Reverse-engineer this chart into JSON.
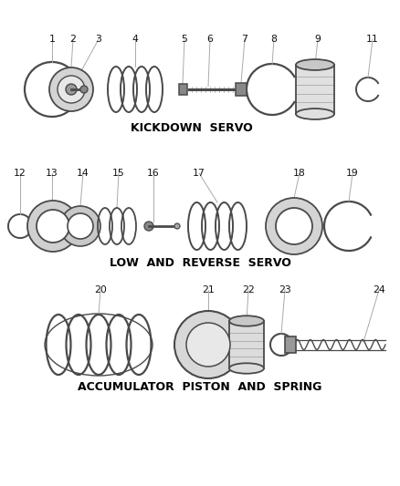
{
  "background_color": "#ffffff",
  "line_color": "#4a4a4a",
  "text_color": "#000000",
  "section1_label": "KICKDOWN  SERVO",
  "section2_label": "LOW  AND  REVERSE  SERVO",
  "section3_label": "ACCUMULATOR  PISTON  AND  SPRING",
  "figsize": [
    4.38,
    5.33
  ],
  "dpi": 100,
  "xlim": [
    0,
    438
  ],
  "ylim": [
    0,
    533
  ]
}
